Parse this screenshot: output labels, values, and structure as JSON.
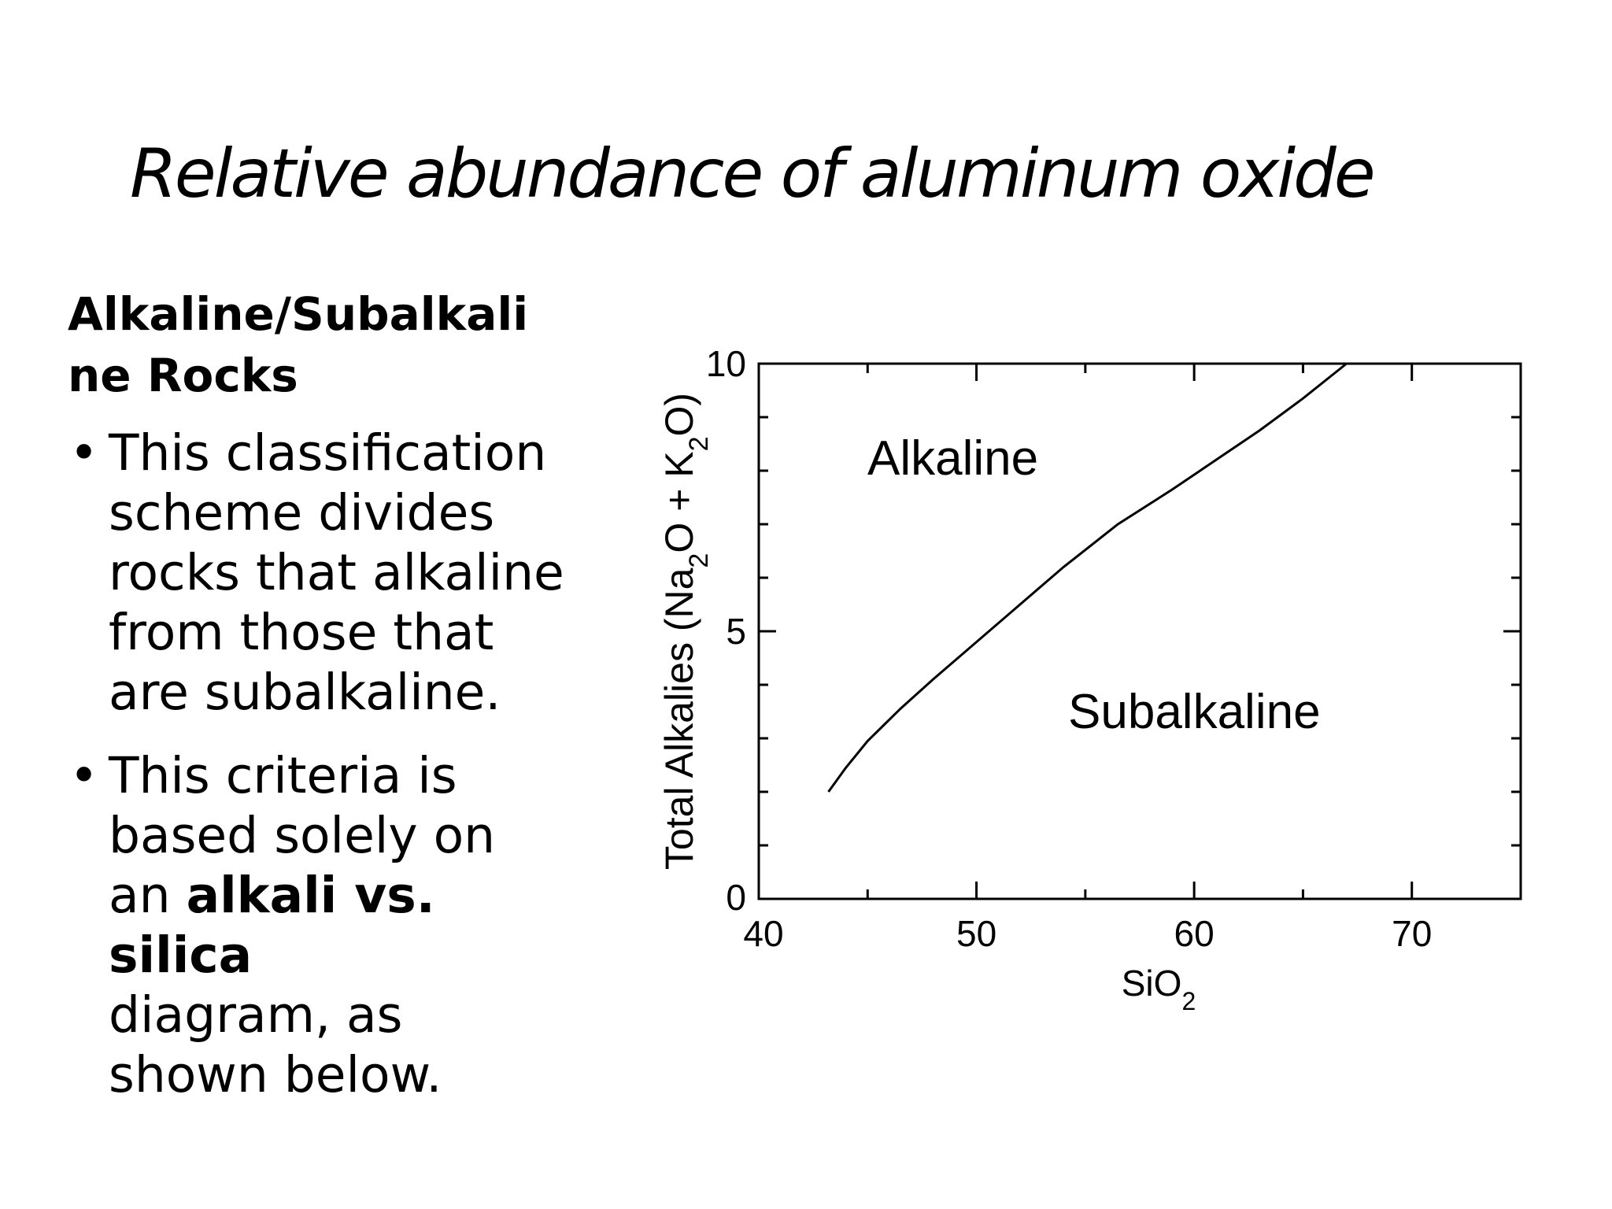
{
  "slide": {
    "title": "Relative abundance of aluminum oxide",
    "section_heading_line1": "Alkaline/Subalkali",
    "section_heading_line2": "ne Rocks",
    "bullet1": {
      "line1": "This classification",
      "line2": "scheme divides",
      "line3": "rocks that alkaline",
      "line4": "from those that",
      "line5": "are subalkaline."
    },
    "bullet2": {
      "line1": "This criteria is",
      "line2": "based solely on",
      "line3_prefix": "an ",
      "line3_bold": "alkali vs. silica",
      "line4": "diagram, as",
      "line5": "shown below."
    },
    "bullet_glyph": "•"
  },
  "chart_data": {
    "type": "line",
    "xlabel": "SiO2",
    "ylabel": "Total Alkalies (Na2O + K2O)",
    "xlim": [
      40,
      75
    ],
    "ylim": [
      0,
      10
    ],
    "x_tick_labels": [
      "40",
      "50",
      "60",
      "70"
    ],
    "y_tick_labels": [
      "0",
      "5",
      "10"
    ],
    "region_labels": [
      "Alkaline",
      "Subalkaline"
    ],
    "series": [
      {
        "x": [
          43.2,
          44,
          45,
          46.5,
          48,
          50,
          52,
          54,
          56.5,
          59,
          61,
          63,
          65,
          67
        ],
        "y": [
          2.0,
          2.45,
          2.95,
          3.55,
          4.1,
          4.8,
          5.5,
          6.2,
          7.0,
          7.65,
          8.2,
          8.75,
          9.35,
          10.0
        ]
      }
    ]
  }
}
